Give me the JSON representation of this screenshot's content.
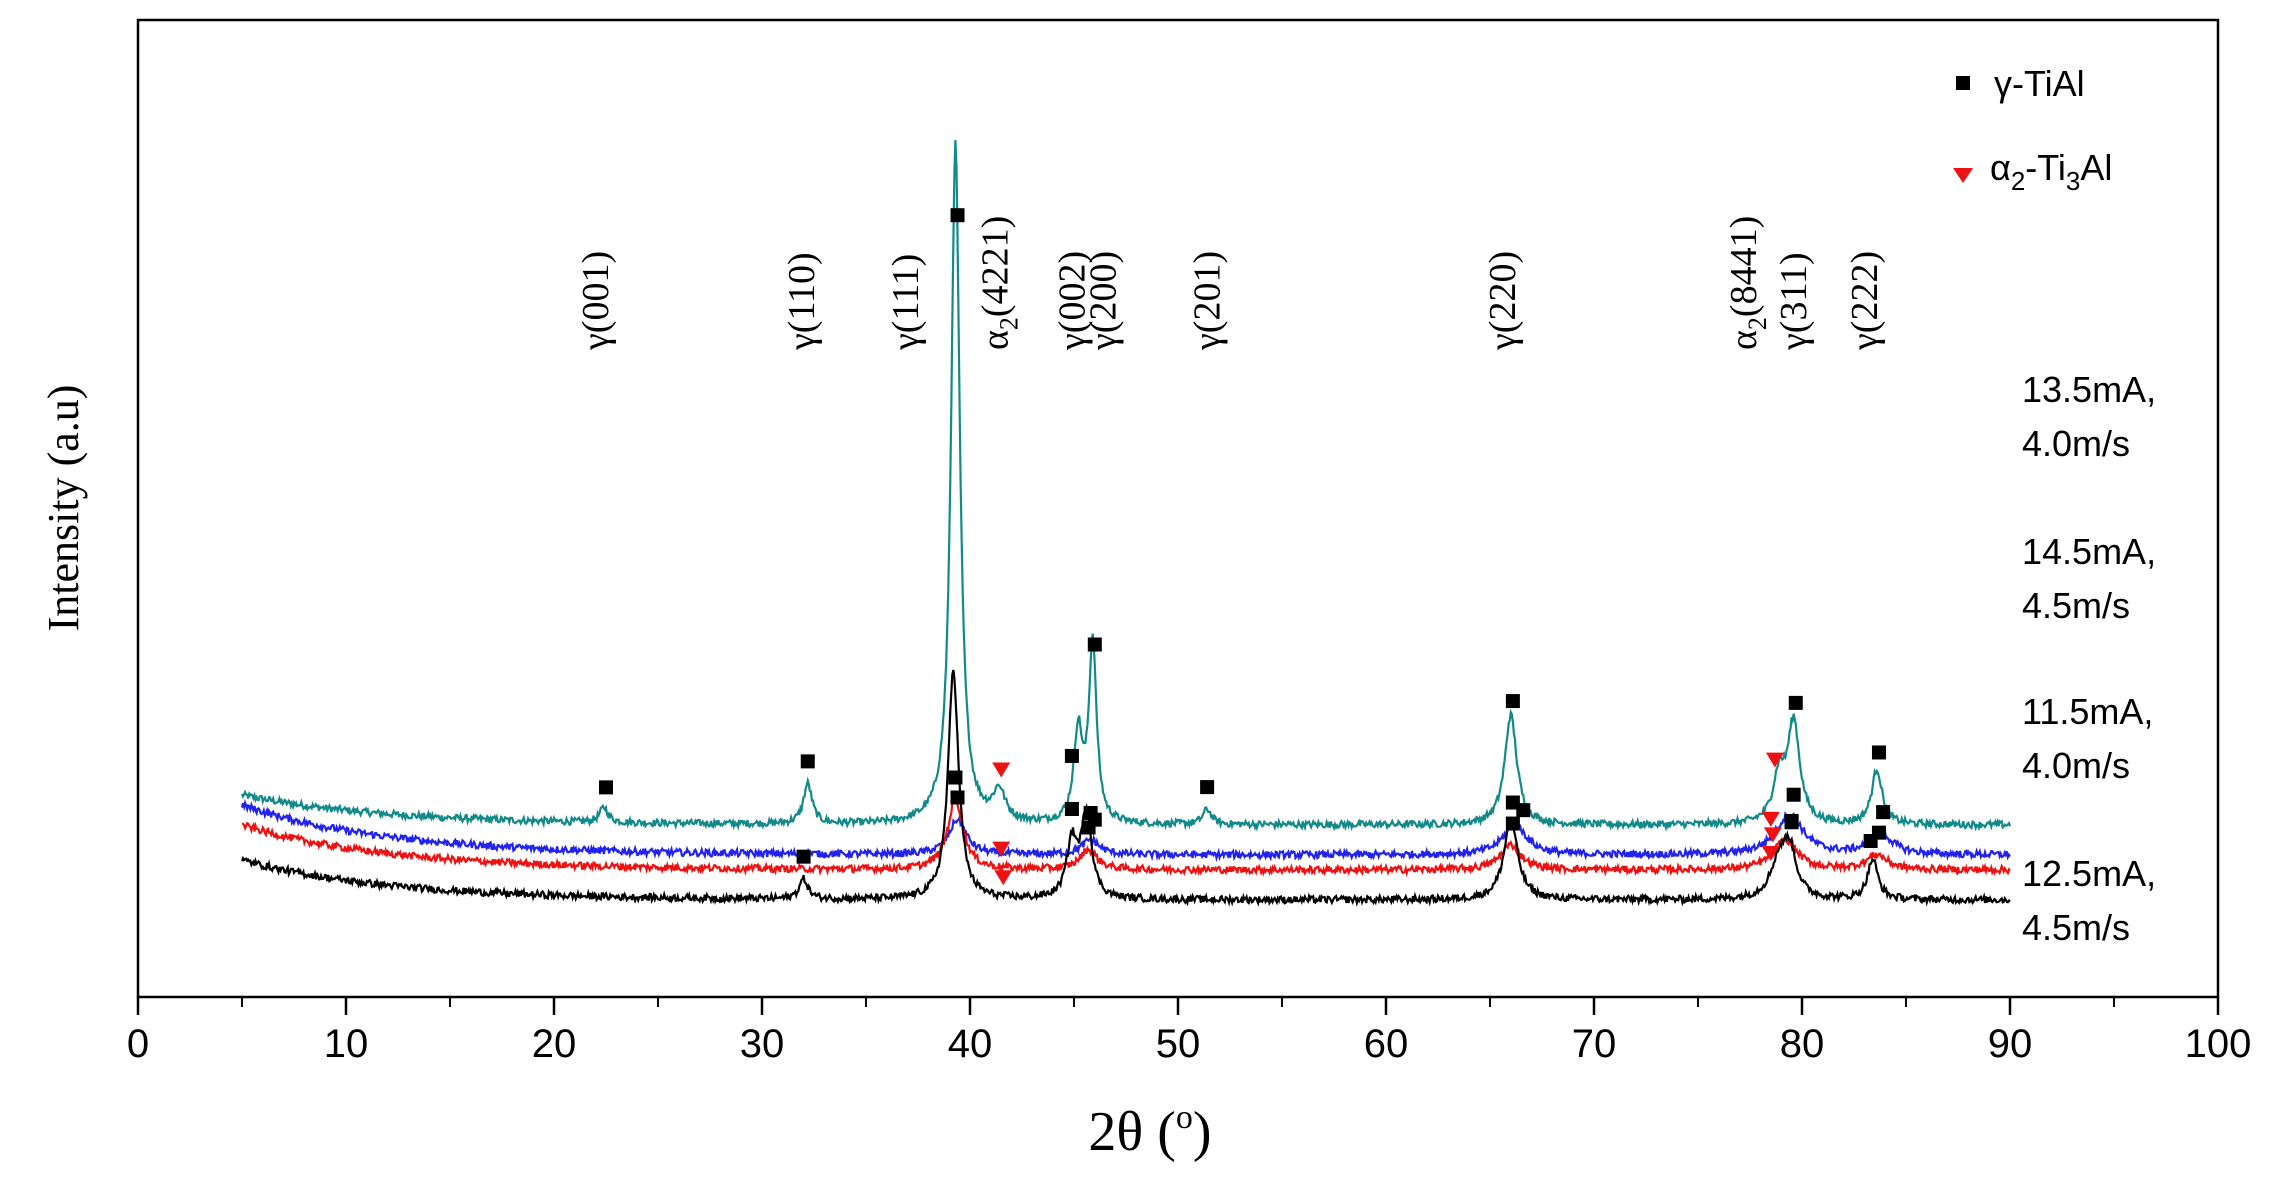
{
  "chart_data": {
    "type": "line",
    "title": "",
    "xlabel": "2θ (°)",
    "xlabel_parts": {
      "main": "2θ (",
      "sup": "o",
      "close": ")"
    },
    "ylabel": "Intensity (a.u)",
    "xlim": [
      0,
      100
    ],
    "xticks": [
      0,
      10,
      20,
      30,
      40,
      50,
      60,
      70,
      80,
      90,
      100
    ],
    "xtick_labels": [
      "0",
      "10",
      "20",
      "30",
      "40",
      "50",
      "60",
      "70",
      "80",
      "90",
      "100"
    ],
    "x_range": [
      5,
      90
    ],
    "legend": [
      {
        "name": "γ-TiAl",
        "marker": "square",
        "color": "#000000"
      },
      {
        "name": "α2-Ti3Al",
        "marker": "triangle-down",
        "color": "#ee1111",
        "parts": [
          "α",
          "2",
          "-Ti",
          "3",
          "Al"
        ]
      }
    ],
    "series": [
      {
        "name": "13.5mA, 4.0m/s",
        "label_lines": [
          "13.5mA,",
          "4.0m/s"
        ],
        "color": "#138a8a",
        "baseline": 0.8,
        "start_rise": 0.3,
        "peaks": [
          {
            "pos": 22.4,
            "h": 0.15,
            "w": 0.25
          },
          {
            "pos": 32.2,
            "h": 0.4,
            "w": 0.25
          },
          {
            "pos": 39.3,
            "h": 6.8,
            "w": 0.25
          },
          {
            "pos": 41.4,
            "h": 0.3,
            "w": 0.35
          },
          {
            "pos": 45.2,
            "h": 0.9,
            "w": 0.25
          },
          {
            "pos": 45.9,
            "h": 1.8,
            "w": 0.22
          },
          {
            "pos": 51.4,
            "h": 0.15,
            "w": 0.25
          },
          {
            "pos": 66.0,
            "h": 1.1,
            "w": 0.35
          },
          {
            "pos": 78.9,
            "h": 0.45,
            "w": 0.35
          },
          {
            "pos": 79.6,
            "h": 1.0,
            "w": 0.35
          },
          {
            "pos": 83.6,
            "h": 0.55,
            "w": 0.3
          }
        ],
        "gamma_markers": [
          22.5,
          32.2,
          39.4,
          44.9,
          46.0,
          51.4,
          66.1,
          79.7,
          83.7
        ],
        "alpha_markers": [
          41.5,
          78.7
        ]
      },
      {
        "name": "14.5mA, 4.5m/s",
        "label_lines": [
          "14.5mA,",
          "4.5m/s"
        ],
        "color": "#2222ee",
        "baseline": 0.5,
        "start_rise": 0.5,
        "peaks": [
          {
            "pos": 39.4,
            "h": 0.35,
            "w": 0.5
          },
          {
            "pos": 45.8,
            "h": 0.15,
            "w": 0.5
          },
          {
            "pos": 66.2,
            "h": 0.3,
            "w": 0.7
          },
          {
            "pos": 79.4,
            "h": 0.4,
            "w": 0.8
          },
          {
            "pos": 83.8,
            "h": 0.2,
            "w": 0.7
          }
        ],
        "gamma_markers": [
          39.4,
          46.0,
          66.6,
          79.6,
          83.9
        ],
        "alpha_markers": [
          78.5
        ]
      },
      {
        "name": "11.5mA, 4.0m/s",
        "label_lines": [
          "11.5mA,",
          "4.0m/s"
        ],
        "color": "#ee1111",
        "baseline": 0.35,
        "start_rise": 0.45,
        "peaks": [
          {
            "pos": 39.3,
            "h": 0.7,
            "w": 0.45
          },
          {
            "pos": 45.7,
            "h": 0.2,
            "w": 0.5
          },
          {
            "pos": 66.0,
            "h": 0.25,
            "w": 0.6
          },
          {
            "pos": 79.2,
            "h": 0.3,
            "w": 0.7
          },
          {
            "pos": 83.6,
            "h": 0.15,
            "w": 0.6
          }
        ],
        "gamma_markers": [
          39.3,
          45.7,
          66.1,
          79.5,
          83.7
        ],
        "alpha_markers": [
          41.5,
          78.6
        ]
      },
      {
        "name": "12.5mA, 4.5m/s",
        "label_lines": [
          "12.5mA,",
          "4.5m/s"
        ],
        "color": "#000000",
        "baseline": 0.05,
        "start_rise": 0.4,
        "peaks": [
          {
            "pos": 32.0,
            "h": 0.2,
            "w": 0.25
          },
          {
            "pos": 39.2,
            "h": 2.3,
            "w": 0.3
          },
          {
            "pos": 44.9,
            "h": 0.55,
            "w": 0.3
          },
          {
            "pos": 45.6,
            "h": 0.85,
            "w": 0.3
          },
          {
            "pos": 66.0,
            "h": 0.8,
            "w": 0.4
          },
          {
            "pos": 78.9,
            "h": 0.35,
            "w": 0.5
          },
          {
            "pos": 79.4,
            "h": 0.45,
            "w": 0.4
          },
          {
            "pos": 83.4,
            "h": 0.4,
            "w": 0.3
          }
        ],
        "gamma_markers": [
          32.0,
          44.9,
          45.8,
          66.1,
          79.5,
          83.3
        ],
        "alpha_markers": [
          41.6,
          78.5
        ]
      }
    ],
    "annotations": [
      {
        "text": "γ(001)",
        "x": 22.6
      },
      {
        "text": "γ(110)",
        "x": 32.5
      },
      {
        "text": "γ(111)",
        "x": 37.5
      },
      {
        "text": "α2(4221)",
        "x": 41.8,
        "parts": [
          "α",
          "2",
          "(4221)"
        ]
      },
      {
        "text": "γ(002)",
        "x": 45.5
      },
      {
        "text": "γ(200)",
        "x": 47.0
      },
      {
        "text": "γ(201)",
        "x": 52.0
      },
      {
        "text": "γ(220)",
        "x": 66.2
      },
      {
        "text": "α2(8441)",
        "x": 77.8,
        "parts": [
          "α",
          "2",
          "(8441)"
        ]
      },
      {
        "text": "γ(311)",
        "x": 80.2
      },
      {
        "text": "γ(222)",
        "x": 83.6
      }
    ]
  }
}
